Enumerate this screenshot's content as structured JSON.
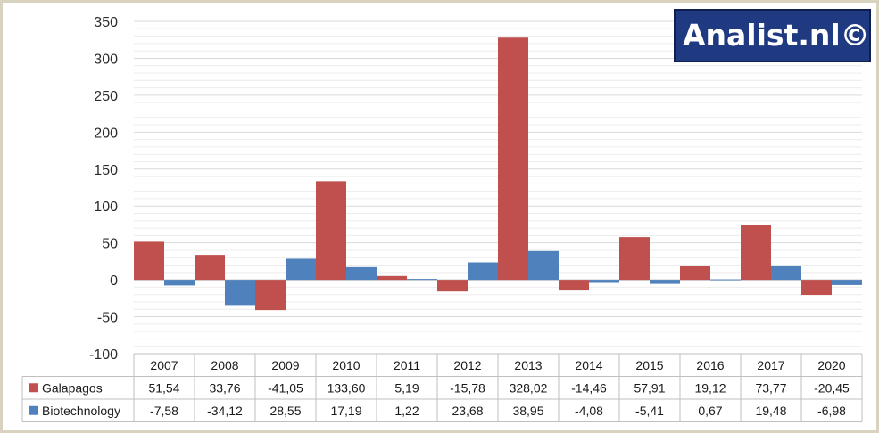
{
  "logo": {
    "text": "Analist.nl©"
  },
  "colors": {
    "galapagos": "#c0504d",
    "biotechnology": "#4f81bd",
    "grid": "#d9d9d9",
    "frame": "#d8d2be",
    "logo_bg": "#203a82"
  },
  "chart_data": {
    "type": "bar",
    "title": "",
    "xlabel": "",
    "ylabel": "",
    "ylim": [
      -100,
      350
    ],
    "yticks": [
      "350",
      "300",
      "250",
      "200",
      "150",
      "100",
      "50",
      "0",
      "-50",
      "-100"
    ],
    "grid": true,
    "legend": "in data table",
    "categories": [
      "2007",
      "2008",
      "2009",
      "2010",
      "2011",
      "2012",
      "2013",
      "2014",
      "2015",
      "2016",
      "2017",
      "2020"
    ],
    "series": [
      {
        "name": "Galapagos",
        "values": [
          51.54,
          33.76,
          -41.05,
          133.6,
          5.19,
          -15.78,
          328.02,
          -14.46,
          57.91,
          19.12,
          73.77,
          -20.45
        ],
        "labels": [
          "51,54",
          "33,76",
          "-41,05",
          "133,60",
          "5,19",
          "-15,78",
          "328,02",
          "-14,46",
          "57,91",
          "19,12",
          "73,77",
          "-20,45"
        ]
      },
      {
        "name": "Biotechnology",
        "values": [
          -7.58,
          -34.12,
          28.55,
          17.19,
          1.22,
          23.68,
          38.95,
          -4.08,
          -5.41,
          0.67,
          19.48,
          -6.98
        ],
        "labels": [
          "-7,58",
          "-34,12",
          "28,55",
          "17,19",
          "1,22",
          "23,68",
          "38,95",
          "-4,08",
          "-5,41",
          "0,67",
          "19,48",
          "-6,98"
        ]
      }
    ]
  }
}
